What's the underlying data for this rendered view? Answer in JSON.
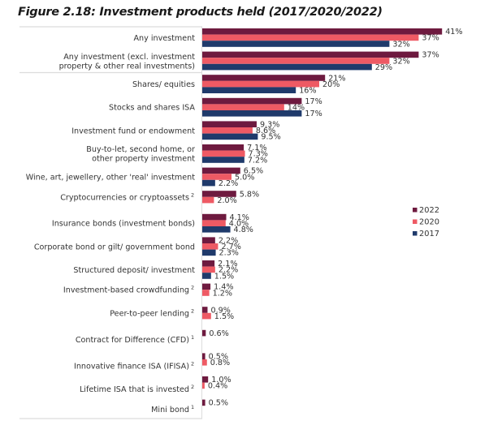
{
  "chart_data": {
    "type": "bar",
    "orientation": "horizontal",
    "title": "Figure 2.18: Investment products held (2017/2020/2022)",
    "xlabel": "",
    "ylabel": "",
    "xlim": [
      0,
      41
    ],
    "grid": false,
    "legend_position": "right",
    "categories": [
      {
        "label": "Any investment",
        "sup": ""
      },
      {
        "label": "Any investment (excl. investment|property & other real investments)",
        "sup": ""
      },
      {
        "label": "Shares/ equities",
        "sup": ""
      },
      {
        "label": "Stocks and shares ISA",
        "sup": ""
      },
      {
        "label": "Investment fund or endowment",
        "sup": ""
      },
      {
        "label": "Buy-to-let, second home, or|other property investment",
        "sup": ""
      },
      {
        "label": "Wine, art, jewellery, other 'real' investment",
        "sup": ""
      },
      {
        "label": "Cryptocurrencies or cryptoassets",
        "sup": "2"
      },
      {
        "label": "Insurance bonds (investment bonds)",
        "sup": ""
      },
      {
        "label": "Corporate bond or gilt/ government bond",
        "sup": ""
      },
      {
        "label": "Structured deposit/ investment",
        "sup": ""
      },
      {
        "label": "Investment-based crowdfunding",
        "sup": "2"
      },
      {
        "label": "Peer-to-peer lending",
        "sup": "2"
      },
      {
        "label": "Contract for Difference (CFD)",
        "sup": "1"
      },
      {
        "label": "Innovative finance ISA (IFISA)",
        "sup": "2"
      },
      {
        "label": "Lifetime ISA that is invested",
        "sup": "2"
      },
      {
        "label": "Mini bond",
        "sup": "1"
      }
    ],
    "series": [
      {
        "name": "2022",
        "color": "#6e1a3f",
        "values": [
          41,
          37,
          21,
          17,
          9.3,
          7.1,
          6.5,
          5.8,
          4.1,
          2.2,
          2.1,
          1.4,
          0.9,
          0.6,
          0.5,
          1.0,
          0.5
        ],
        "labels": [
          "41%",
          "37%",
          "21%",
          "17%",
          "9.3%",
          "7.1%",
          "6.5%",
          "5.8%",
          "4.1%",
          "2.2%",
          "2.1%",
          "1.4%",
          "0.9%",
          "0.6%",
          "0.5%",
          "1.0%",
          "0.5%"
        ]
      },
      {
        "name": "2020",
        "color": "#ee5a64",
        "values": [
          37,
          32,
          20,
          14,
          8.6,
          7.3,
          5.0,
          2.0,
          4.0,
          2.7,
          2.2,
          1.2,
          1.5,
          null,
          0.8,
          0.4,
          null
        ],
        "labels": [
          "37%",
          "32%",
          "20%",
          "14%",
          "8.6%",
          "7.3%",
          "5.0%",
          "2.0%",
          "4.0%",
          "2.7%",
          "2.2%",
          "1.2%",
          "1.5%",
          null,
          "0.8%",
          "0.4%",
          null
        ]
      },
      {
        "name": "2017",
        "color": "#1f3a6b",
        "values": [
          32,
          29,
          16,
          17,
          9.5,
          7.2,
          2.2,
          null,
          4.8,
          2.3,
          1.5,
          null,
          null,
          null,
          null,
          null,
          null
        ],
        "labels": [
          "32%",
          "29%",
          "16%",
          "17%",
          "9.5%",
          "7.2%",
          "2.2%",
          null,
          "4.8%",
          "2.3%",
          "1.5%",
          null,
          null,
          null,
          null,
          null,
          null
        ]
      }
    ],
    "legend": [
      "2022",
      "2020",
      "2017"
    ]
  }
}
